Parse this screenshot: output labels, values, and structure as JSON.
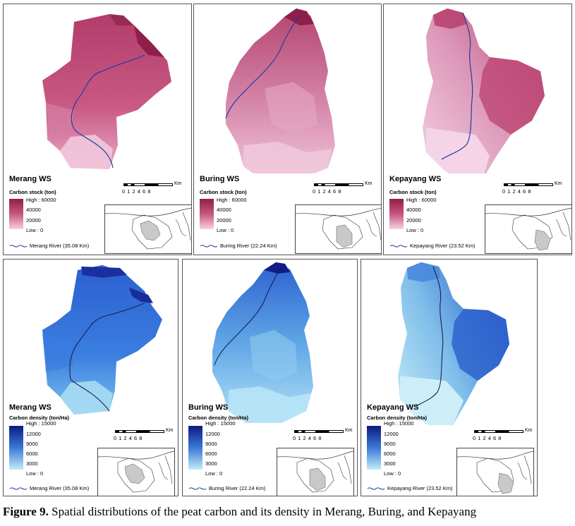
{
  "panels": [
    {
      "ws": "Merang WS",
      "legend_title": "Carbon stock (ton)",
      "high": "High : 60000",
      "mid1": "40000",
      "mid2": "20000",
      "low": "Low : 0",
      "river": "Merang River (35.08 Km)"
    },
    {
      "ws": "Buring WS",
      "legend_title": "Carbon stock (ton)",
      "high": "High : 60000",
      "mid1": "40000",
      "mid2": "20000",
      "low": "Low : 0",
      "river": "Buring River (22.24 Km)"
    },
    {
      "ws": "Kepayang WS",
      "legend_title": "Carbon stock (ton)",
      "high": "High : 60000",
      "mid1": "40000",
      "mid2": "20000",
      "low": "Low : 0",
      "river": "Kepayang River (23.52 Km)"
    },
    {
      "ws": "Merang WS",
      "legend_title": "Carbon density (ton/Ha)",
      "high": "High : 15000",
      "mid1": "12000",
      "mid2": "9000",
      "mid3": "6000",
      "mid4": "3000",
      "low": "Low : 0",
      "river": "Merang River (35.08 Km)"
    },
    {
      "ws": "Buring WS",
      "legend_title": "Carbon density (ton/Ha)",
      "high": "High : 15000",
      "mid1": "12000",
      "mid2": "9000",
      "mid3": "6000",
      "mid4": "3000",
      "low": "Low : 0",
      "river": "Buring River (22.24 Km)"
    },
    {
      "ws": "Kepayang WS",
      "legend_title": "Carbon density (ton/Ha)",
      "high": "High : 15000",
      "mid1": "12000",
      "mid2": "9000",
      "mid3": "6000",
      "mid4": "3000",
      "low": "Low : 0",
      "river": "Kepayang River (23.52 Km)"
    }
  ],
  "scalebar": {
    "ticks": "0 1 2    4    6    8",
    "unit": "Km"
  },
  "caption": {
    "label": "Figure 9.",
    "text": " Spatial distributions of the peat carbon and its density in Merang, Buring, and Kepayang"
  },
  "colors": {
    "stock_high": "#8e1f4a",
    "stock_mid": "#c8567f",
    "stock_low": "#f2c8dc",
    "density_high": "#10208a",
    "density_mid": "#3a76d8",
    "density_low": "#b8e4f5",
    "river": "#1d3fa0"
  }
}
